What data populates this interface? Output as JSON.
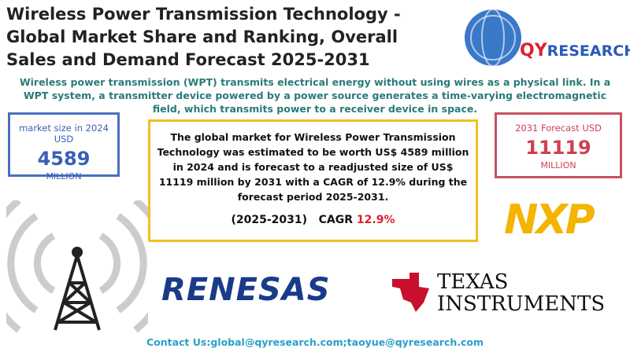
{
  "header": {
    "title": "Wireless Power Transmission Technology - Global Market Share and Ranking, Overall Sales and Demand Forecast 2025-2031",
    "logo": {
      "left": "QY",
      "right": "RESEARCH"
    }
  },
  "description": "Wireless power transmission (WPT) transmits electrical energy without using wires as a physical link. In a WPT system, a transmitter device powered by a power source generates a time-varying electromagnetic field, which transmits power to a receiver device in space.",
  "left_box": {
    "label": "market size in 2024 USD",
    "value": "4589",
    "unit": "MILLION"
  },
  "right_box": {
    "label": "2031 Forecast  USD",
    "value": "11119",
    "unit": "MILLION"
  },
  "center_box": {
    "text": "The global market for Wireless Power Transmission Technology was estimated to be worth US$ 4589 million in 2024 and is forecast to a readjusted size of US$ 11119 million by 2031 with a CAGR of 12.9% during the forecast period 2025-2031.",
    "period": "(2025-2031)",
    "cagr_label": "CAGR",
    "cagr_value": "12.9%"
  },
  "companies": {
    "nxp": "NXP",
    "renesas": "RENESAS",
    "ti_line1": "TEXAS",
    "ti_line2": "INSTRUMENTS"
  },
  "footer": {
    "contact": "Contact Us:global@qyresearch.com;taoyue@qyresearch.com"
  }
}
